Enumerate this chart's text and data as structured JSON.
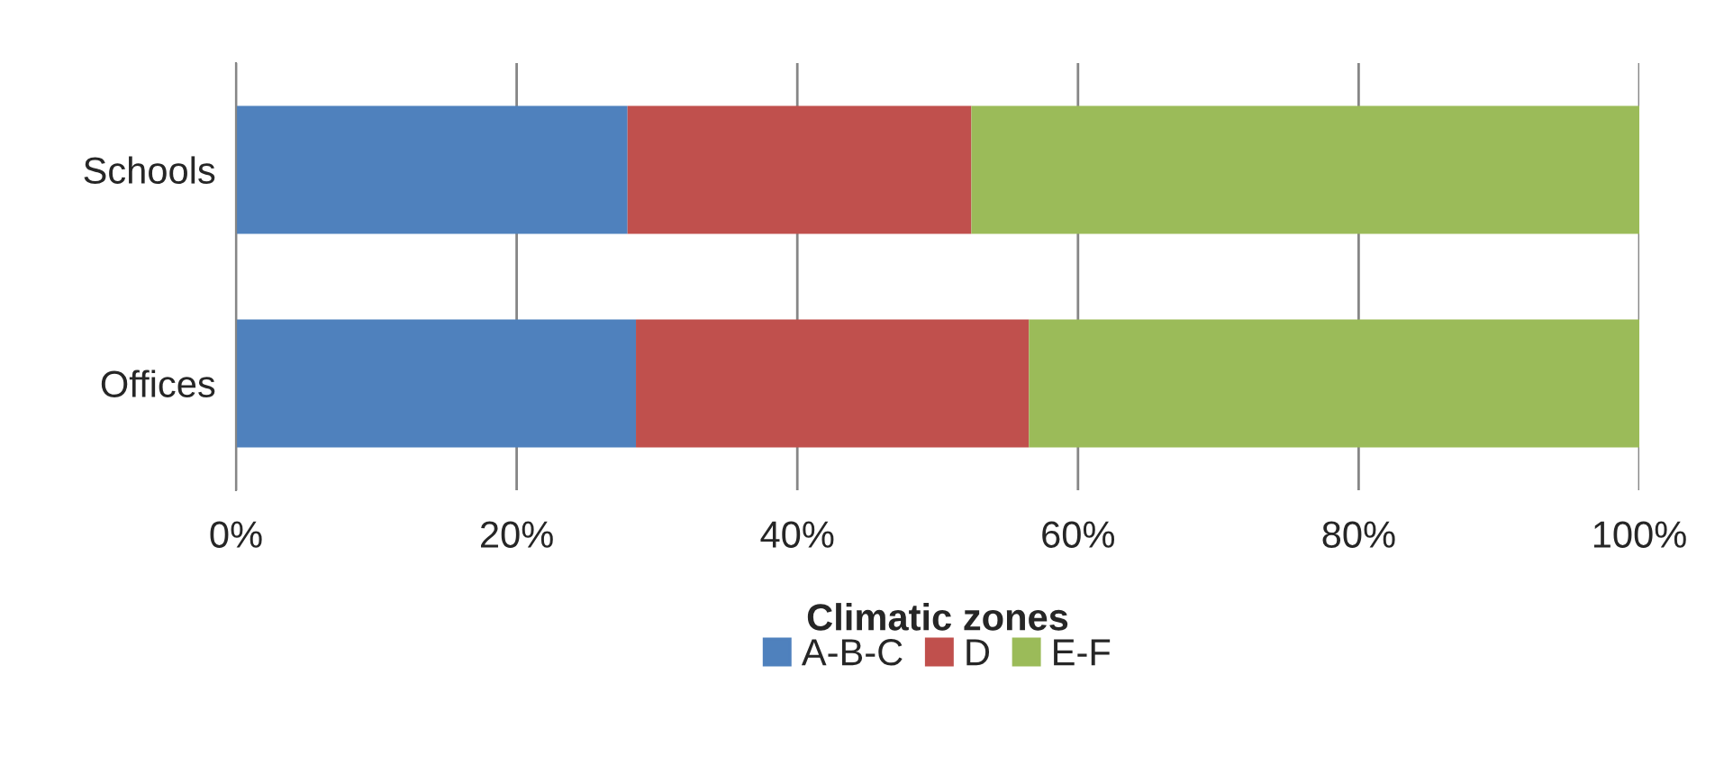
{
  "chart_data": {
    "type": "bar",
    "orientation": "horizontal",
    "stacked": true,
    "categories": [
      "Schools",
      "Offices"
    ],
    "series": [
      {
        "name": "A-B-C",
        "color": "#4f81bd",
        "values": [
          27.9,
          28.5
        ]
      },
      {
        "name": "D",
        "color": "#c0504d",
        "values": [
          24.5,
          28.0
        ]
      },
      {
        "name": "E-F",
        "color": "#9bbb59",
        "values": [
          47.6,
          43.5
        ]
      }
    ],
    "xlim": [
      0,
      100
    ],
    "xticks": [
      {
        "value": 0,
        "label": "0%"
      },
      {
        "value": 20,
        "label": "20%"
      },
      {
        "value": 40,
        "label": "40%"
      },
      {
        "value": 60,
        "label": "60%"
      },
      {
        "value": 80,
        "label": "80%"
      },
      {
        "value": 100,
        "label": "100%"
      }
    ],
    "grid": "x",
    "legend": "bottom",
    "legend_title": "Climatic zones"
  }
}
